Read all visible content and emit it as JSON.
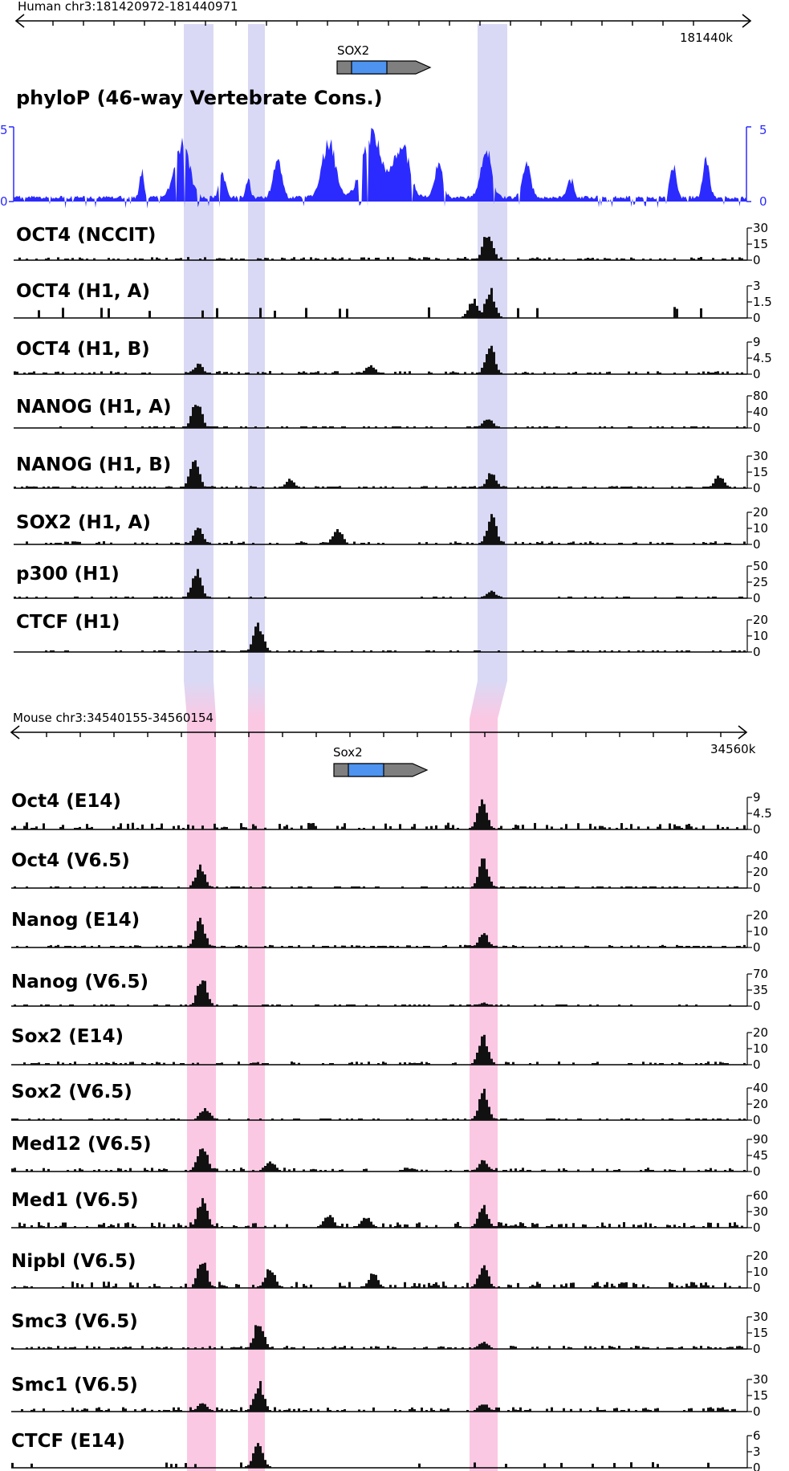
{
  "colors": {
    "human_highlight": "#d9d9f5",
    "mouse_highlight": "#fbc8e3",
    "phylop": "#2b2bff",
    "signal": "#111111",
    "gene_utr": "#7f7f7f",
    "gene_cds": "#4d93ef"
  },
  "human": {
    "region_label": "Human chr3:181420972-181440971",
    "end_label": "181440k",
    "gene": "SOX2",
    "phylop": {
      "title": "phyloP (46-way Vertebrate Cons.)",
      "ymax": "5",
      "ymin": "0"
    },
    "tracks": [
      {
        "name": "OCT4 (NCCIT)",
        "ticks": [
          "30",
          "15",
          "0"
        ],
        "peaks": [
          {
            "c": 0.645,
            "h": 1.0
          }
        ],
        "bg": 0.1,
        "sparse": false,
        "seed": 11
      },
      {
        "name": "OCT4 (H1, A)",
        "ticks": [
          "3",
          "1.5",
          "0"
        ],
        "peaks": [
          {
            "c": 0.648,
            "h": 1.0
          },
          {
            "c": 0.625,
            "h": 0.65
          }
        ],
        "bg": 0.35,
        "sparse": true,
        "seed": 12
      },
      {
        "name": "OCT4 (H1, B)",
        "ticks": [
          "9",
          "4.5",
          "0"
        ],
        "peaks": [
          {
            "c": 0.648,
            "h": 1.0
          },
          {
            "c": 0.25,
            "h": 0.35
          },
          {
            "c": 0.485,
            "h": 0.3
          }
        ],
        "bg": 0.1,
        "sparse": false,
        "seed": 13
      },
      {
        "name": "NANOG (H1, A)",
        "ticks": [
          "80",
          "40",
          "0"
        ],
        "peaks": [
          {
            "c": 0.248,
            "h": 1.0
          },
          {
            "c": 0.645,
            "h": 0.35
          }
        ],
        "bg": 0.04,
        "sparse": false,
        "seed": 14
      },
      {
        "name": "NANOG (H1, B)",
        "ticks": [
          "30",
          "15",
          "0"
        ],
        "peaks": [
          {
            "c": 0.245,
            "h": 1.0
          },
          {
            "c": 0.65,
            "h": 0.55
          },
          {
            "c": 0.96,
            "h": 0.45
          },
          {
            "c": 0.375,
            "h": 0.3
          }
        ],
        "bg": 0.07,
        "sparse": false,
        "seed": 15
      },
      {
        "name": "SOX2 (H1, A)",
        "ticks": [
          "20",
          "10",
          "0"
        ],
        "peaks": [
          {
            "c": 0.65,
            "h": 1.0
          },
          {
            "c": 0.25,
            "h": 0.55
          },
          {
            "c": 0.44,
            "h": 0.55
          }
        ],
        "bg": 0.1,
        "sparse": false,
        "seed": 16
      },
      {
        "name": "p300 (H1)",
        "ticks": [
          "50",
          "25",
          "0"
        ],
        "peaks": [
          {
            "c": 0.248,
            "h": 1.0
          },
          {
            "c": 0.65,
            "h": 0.25
          }
        ],
        "bg": 0.03,
        "sparse": false,
        "seed": 17
      },
      {
        "name": "CTCF (H1)",
        "ticks": [
          "20",
          "10",
          "0"
        ],
        "peaks": [
          {
            "c": 0.332,
            "h": 1.0
          }
        ],
        "bg": 0.05,
        "sparse": false,
        "seed": 18
      }
    ]
  },
  "mouse": {
    "region_label": "Mouse chr3:34540155-34560154",
    "end_label": "34560k",
    "gene": "Sox2",
    "tracks": [
      {
        "name": "Oct4 (E14)",
        "ticks": [
          "9",
          "4.5",
          "0"
        ],
        "peaks": [
          {
            "c": 0.638,
            "h": 1.0
          }
        ],
        "bg": 0.22,
        "sparse": false,
        "seed": 21
      },
      {
        "name": "Oct4 (V6.5)",
        "ticks": [
          "40",
          "20",
          "0"
        ],
        "peaks": [
          {
            "c": 0.255,
            "h": 0.75
          },
          {
            "c": 0.64,
            "h": 1.0
          }
        ],
        "bg": 0.05,
        "sparse": false,
        "seed": 22
      },
      {
        "name": "Nanog (E14)",
        "ticks": [
          "20",
          "10",
          "0"
        ],
        "peaks": [
          {
            "c": 0.255,
            "h": 1.0
          },
          {
            "c": 0.64,
            "h": 0.5
          }
        ],
        "bg": 0.08,
        "sparse": false,
        "seed": 23
      },
      {
        "name": "Nanog (V6.5)",
        "ticks": [
          "70",
          "35",
          "0"
        ],
        "peaks": [
          {
            "c": 0.258,
            "h": 1.0
          },
          {
            "c": 0.64,
            "h": 0.12
          }
        ],
        "bg": 0.03,
        "sparse": false,
        "seed": 24
      },
      {
        "name": "Sox2 (E14)",
        "ticks": [
          "20",
          "10",
          "0"
        ],
        "peaks": [
          {
            "c": 0.64,
            "h": 1.0
          }
        ],
        "bg": 0.1,
        "sparse": false,
        "seed": 25
      },
      {
        "name": "Sox2 (V6.5)",
        "ticks": [
          "40",
          "20",
          "0"
        ],
        "peaks": [
          {
            "c": 0.64,
            "h": 1.0
          },
          {
            "c": 0.262,
            "h": 0.45
          }
        ],
        "bg": 0.05,
        "sparse": false,
        "seed": 26
      },
      {
        "name": "Med12 (V6.5)",
        "ticks": [
          "90",
          "45",
          "0"
        ],
        "peaks": [
          {
            "c": 0.258,
            "h": 1.0
          },
          {
            "c": 0.64,
            "h": 0.4
          },
          {
            "c": 0.35,
            "h": 0.4
          }
        ],
        "bg": 0.12,
        "sparse": false,
        "seed": 27
      },
      {
        "name": "Med1 (V6.5)",
        "ticks": [
          "60",
          "30",
          "0"
        ],
        "peaks": [
          {
            "c": 0.258,
            "h": 1.0
          },
          {
            "c": 0.64,
            "h": 0.75
          },
          {
            "c": 0.43,
            "h": 0.45
          },
          {
            "c": 0.48,
            "h": 0.4
          }
        ],
        "bg": 0.18,
        "sparse": false,
        "seed": 28
      },
      {
        "name": "Nipbl (V6.5)",
        "ticks": [
          "20",
          "10",
          "0"
        ],
        "peaks": [
          {
            "c": 0.258,
            "h": 1.0
          },
          {
            "c": 0.64,
            "h": 0.8
          },
          {
            "c": 0.35,
            "h": 0.7
          },
          {
            "c": 0.49,
            "h": 0.5
          }
        ],
        "bg": 0.2,
        "sparse": false,
        "seed": 29
      },
      {
        "name": "Smc3 (V6.5)",
        "ticks": [
          "30",
          "15",
          "0"
        ],
        "peaks": [
          {
            "c": 0.335,
            "h": 1.0
          },
          {
            "c": 0.64,
            "h": 0.25
          }
        ],
        "bg": 0.1,
        "sparse": false,
        "seed": 30
      },
      {
        "name": "Smc1 (V6.5)",
        "ticks": [
          "30",
          "15",
          "0"
        ],
        "peaks": [
          {
            "c": 0.335,
            "h": 1.0
          },
          {
            "c": 0.258,
            "h": 0.3
          },
          {
            "c": 0.64,
            "h": 0.3
          }
        ],
        "bg": 0.14,
        "sparse": false,
        "seed": 31
      },
      {
        "name": "CTCF (E14)",
        "ticks": [
          "6",
          "3",
          "0"
        ],
        "peaks": [
          {
            "c": 0.334,
            "h": 1.0
          }
        ],
        "bg": 0.18,
        "sparse": true,
        "seed": 32
      }
    ]
  }
}
